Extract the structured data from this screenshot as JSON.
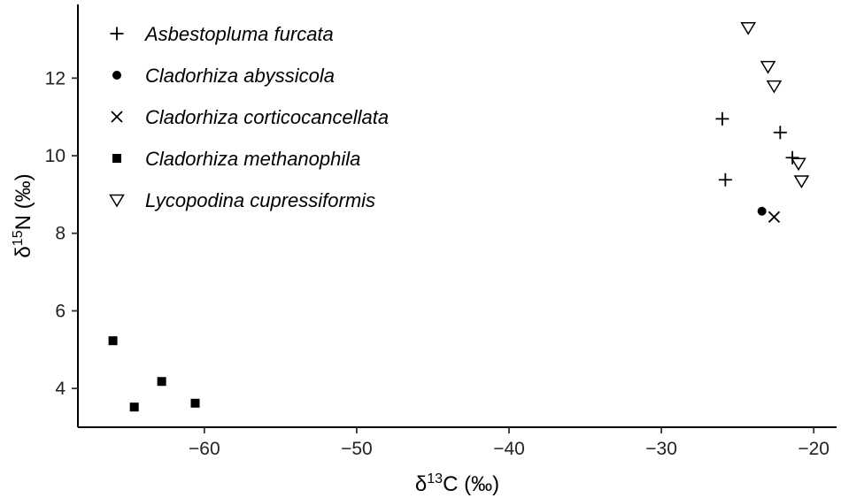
{
  "chart_data": {
    "type": "scatter",
    "title": "",
    "xlabel": {
      "prefix": "δ",
      "sup": "13",
      "suffix": "C (‰)"
    },
    "ylabel": {
      "prefix": "δ",
      "sup": "15",
      "suffix": "N (‰)"
    },
    "xlim": [
      -68.3,
      -18.5
    ],
    "ylim": [
      3.0,
      13.9
    ],
    "xticks": [
      -60,
      -50,
      -40,
      -30,
      -20
    ],
    "xtick_labels": [
      "−60",
      "−50",
      "−40",
      "−30",
      "−20"
    ],
    "yticks": [
      4,
      6,
      8,
      10,
      12
    ],
    "ytick_labels": [
      "4",
      "6",
      "8",
      "10",
      "12"
    ],
    "grid": false,
    "legend_position": "top-left",
    "series": [
      {
        "name": "Asbestopluma furcata",
        "marker": "plus",
        "points": [
          [
            -26.0,
            10.95
          ],
          [
            -22.2,
            10.6
          ],
          [
            -21.4,
            9.95
          ],
          [
            -25.8,
            9.38
          ]
        ]
      },
      {
        "name": "Cladorhiza abyssicola",
        "marker": "circle",
        "points": [
          [
            -23.4,
            8.57
          ]
        ]
      },
      {
        "name": "Cladorhiza corticocancellata",
        "marker": "cross",
        "points": [
          [
            -22.6,
            8.42
          ]
        ]
      },
      {
        "name": "Cladorhiza methanophila",
        "marker": "square",
        "points": [
          [
            -66.0,
            5.23
          ],
          [
            -62.8,
            4.18
          ],
          [
            -64.6,
            3.52
          ],
          [
            -60.6,
            3.62
          ]
        ]
      },
      {
        "name": "Lycopodina cupressiformis",
        "marker": "triangle-down",
        "points": [
          [
            -24.3,
            13.3
          ],
          [
            -23.0,
            12.3
          ],
          [
            -22.6,
            11.8
          ],
          [
            -21.0,
            9.8
          ],
          [
            -20.8,
            9.35
          ]
        ]
      }
    ]
  }
}
